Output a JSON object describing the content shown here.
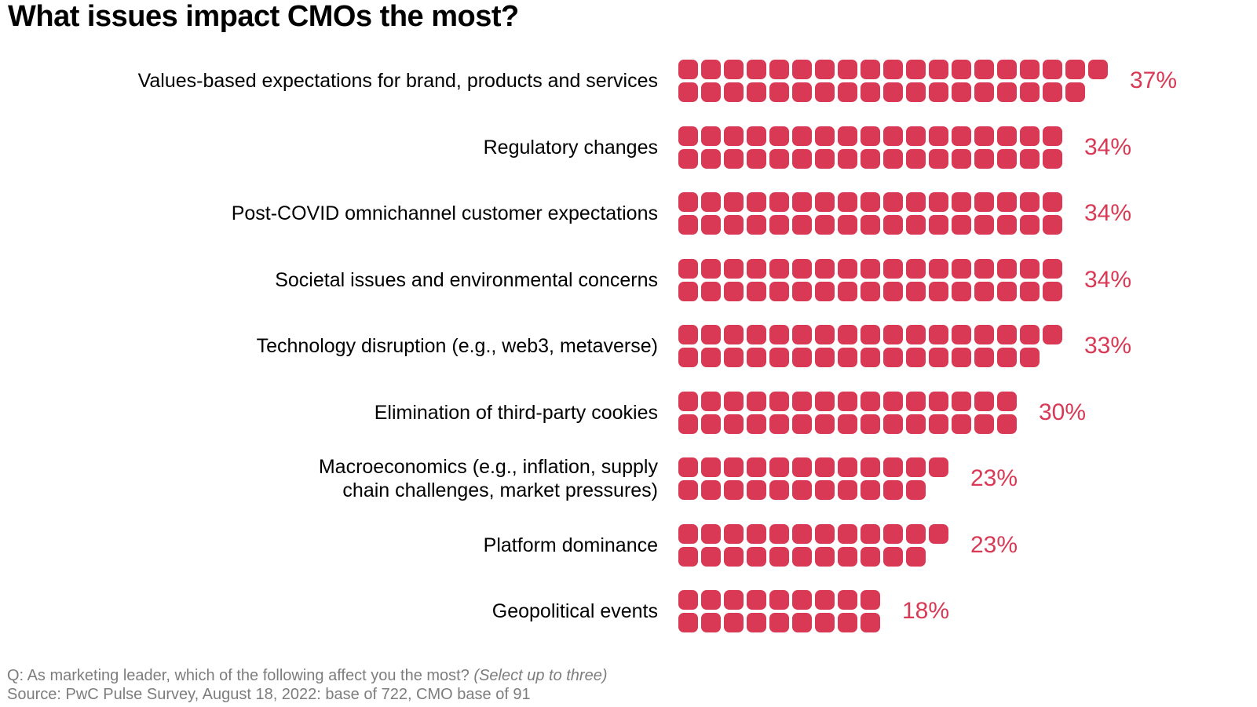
{
  "title": "What issues impact CMOs the most?",
  "colors": {
    "accent_rose": "#d93954",
    "label_text": "#000000",
    "footer_text": "#7d7d7d",
    "background": "#ffffff"
  },
  "footer": {
    "question": "Q: As marketing leader, which of the following affect you the most? ",
    "question_note": "(Select up to three)",
    "source": "Source: PwC Pulse Survey, August 18, 2022: base of 722, CMO base of 91"
  },
  "rows": [
    {
      "label": "Values-based expectations for brand, products and services",
      "value": 37,
      "value_label": "37%"
    },
    {
      "label": "Regulatory changes",
      "value": 34,
      "value_label": "34%"
    },
    {
      "label": "Post-COVID omnichannel customer expectations",
      "value": 34,
      "value_label": "34%"
    },
    {
      "label": "Societal issues and environmental concerns",
      "value": 34,
      "value_label": "34%"
    },
    {
      "label": "Technology disruption (e.g., web3, metaverse)",
      "value": 33,
      "value_label": "33%"
    },
    {
      "label": "Elimination of third-party cookies",
      "value": 30,
      "value_label": "30%"
    },
    {
      "label": "Macroeconomics (e.g., inflation, supply\nchain challenges, market pressures)",
      "value": 23,
      "value_label": "23%"
    },
    {
      "label": "Platform dominance",
      "value": 23,
      "value_label": "23%"
    },
    {
      "label": "Geopolitical events",
      "value": 18,
      "value_label": "18%"
    }
  ],
  "chart_data": {
    "type": "bar",
    "subtype": "pictogram-waffle",
    "title": "What issues impact CMOs the most?",
    "unit": "each square = 1%",
    "square_rows_per_category": 2,
    "categories": [
      "Values-based expectations for brand, products and services",
      "Regulatory changes",
      "Post-COVID omnichannel customer expectations",
      "Societal issues and environmental concerns",
      "Technology disruption (e.g., web3, metaverse)",
      "Elimination of third-party cookies",
      "Macroeconomics (e.g., inflation, supply chain challenges, market pressures)",
      "Platform dominance",
      "Geopolitical events"
    ],
    "values": [
      37,
      34,
      34,
      34,
      33,
      30,
      23,
      23,
      18
    ],
    "value_suffix": "%",
    "xlim": [
      0,
      40
    ],
    "orientation": "horizontal",
    "grid": false,
    "legend": false,
    "data_labels_position": "right-of-bar",
    "bar_color": "#d93954"
  }
}
